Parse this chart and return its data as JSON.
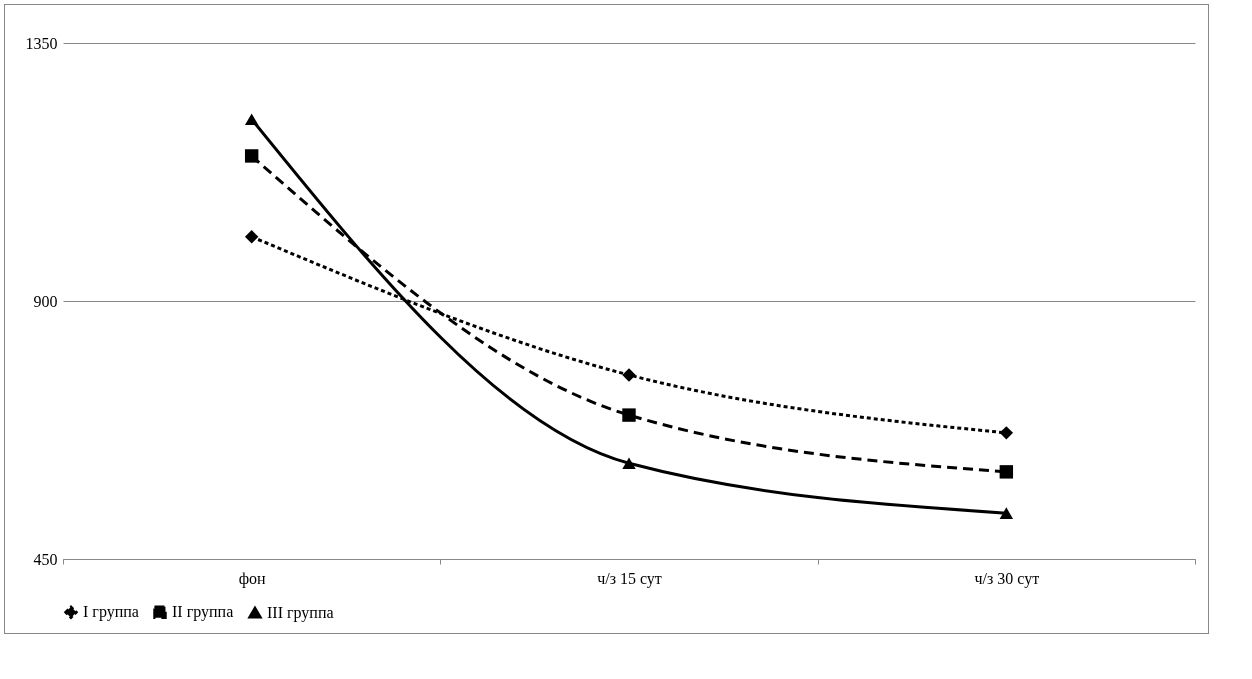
{
  "chart_data": {
    "type": "line",
    "categories": [
      "фон",
      "ч/з 15 сут",
      "ч/з 30 сут"
    ],
    "series": [
      {
        "name": "I группа",
        "color": "#000000",
        "marker": "diamond",
        "line_style": "dotted",
        "values": [
          1012,
          771,
          670
        ]
      },
      {
        "name": "II группа",
        "color": "#000000",
        "marker": "square",
        "line_style": "dashed",
        "values": [
          1153,
          701,
          602
        ]
      },
      {
        "name": "III группа",
        "color": "#000000",
        "marker": "triangle",
        "line_style": "solid",
        "values": [
          1217,
          617,
          530
        ]
      }
    ],
    "ylim": [
      450,
      1350
    ],
    "yticks": [
      450,
      900,
      1350
    ],
    "grid": "y",
    "legend": "bottom"
  }
}
